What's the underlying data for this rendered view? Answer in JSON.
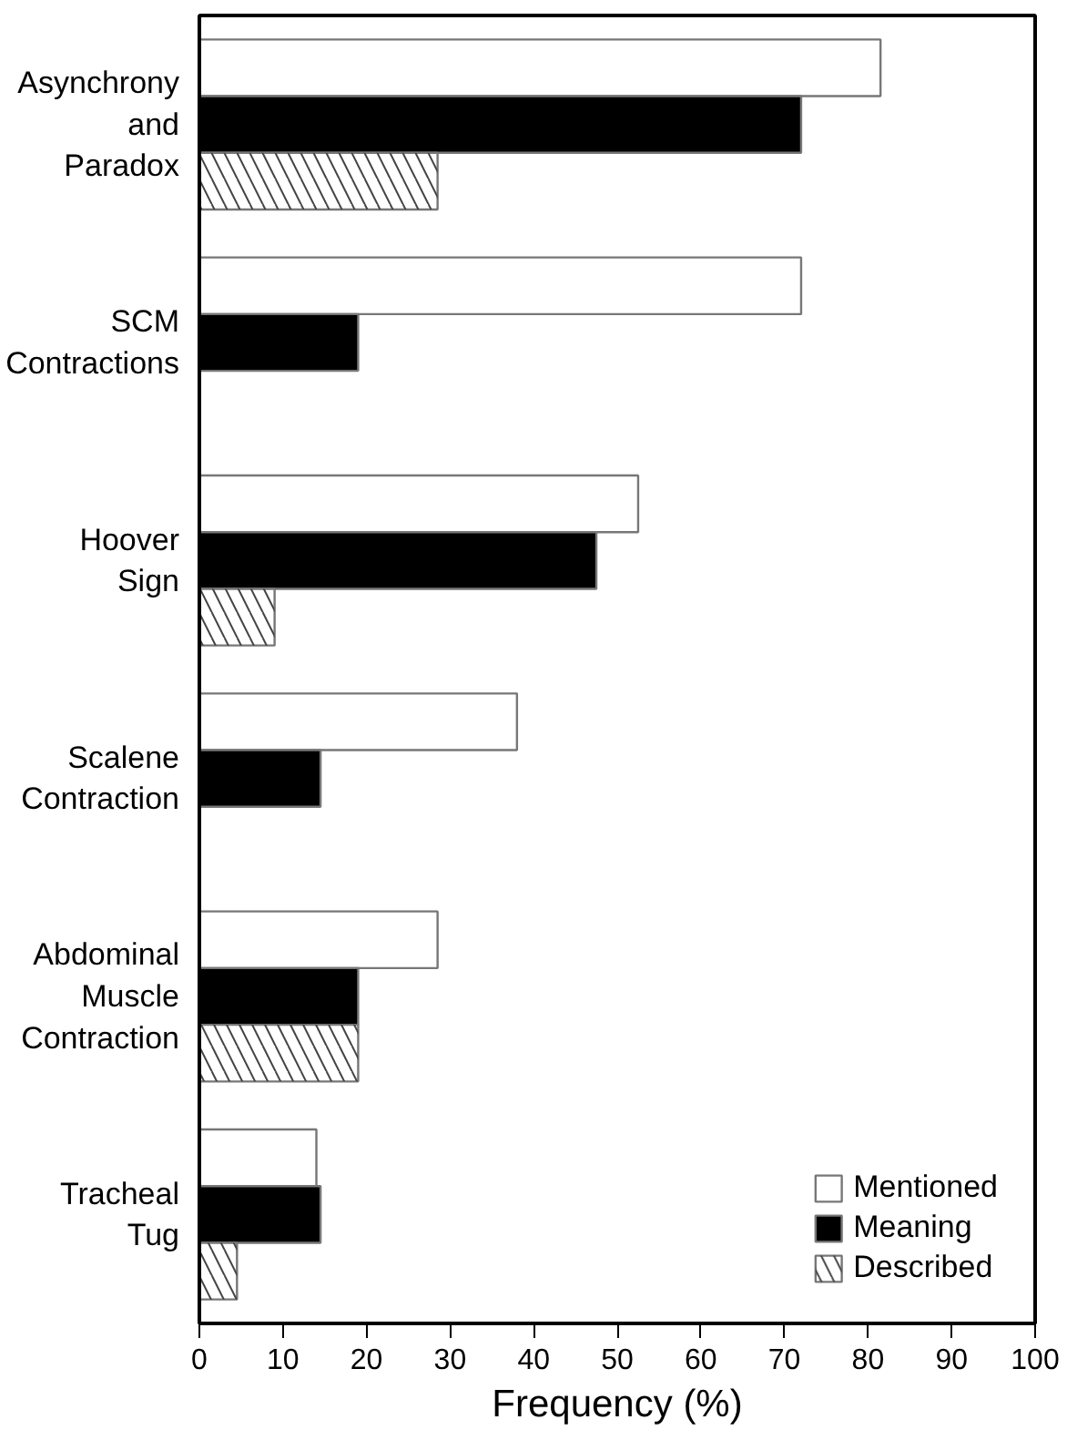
{
  "chart_data": {
    "type": "bar",
    "orientation": "horizontal",
    "xlabel": "Frequency (%)",
    "categories": [
      "Asynchrony\nand\nParadox",
      "SCM\nContractions",
      "Hoover\nSign",
      "Scalene\nContraction",
      "Abdominal\nMuscle\nContraction",
      "Tracheal\nTug"
    ],
    "series": [
      {
        "name": "Mentioned",
        "color": "#ffffff",
        "values": [
          81.5,
          72,
          52.5,
          38,
          28.5,
          14
        ]
      },
      {
        "name": "Meaning",
        "color": "#000000",
        "values": [
          72,
          19,
          47.5,
          14.5,
          19,
          14.5
        ]
      },
      {
        "name": "Described",
        "color": "#ffffff",
        "values": [
          28.5,
          null,
          9,
          null,
          19,
          4.5
        ]
      }
    ],
    "xlim": [
      0,
      100
    ],
    "xticks": [
      0,
      10,
      20,
      30,
      40,
      50,
      60,
      70,
      80,
      90,
      100
    ],
    "grid": false,
    "legend": "bottom right"
  }
}
